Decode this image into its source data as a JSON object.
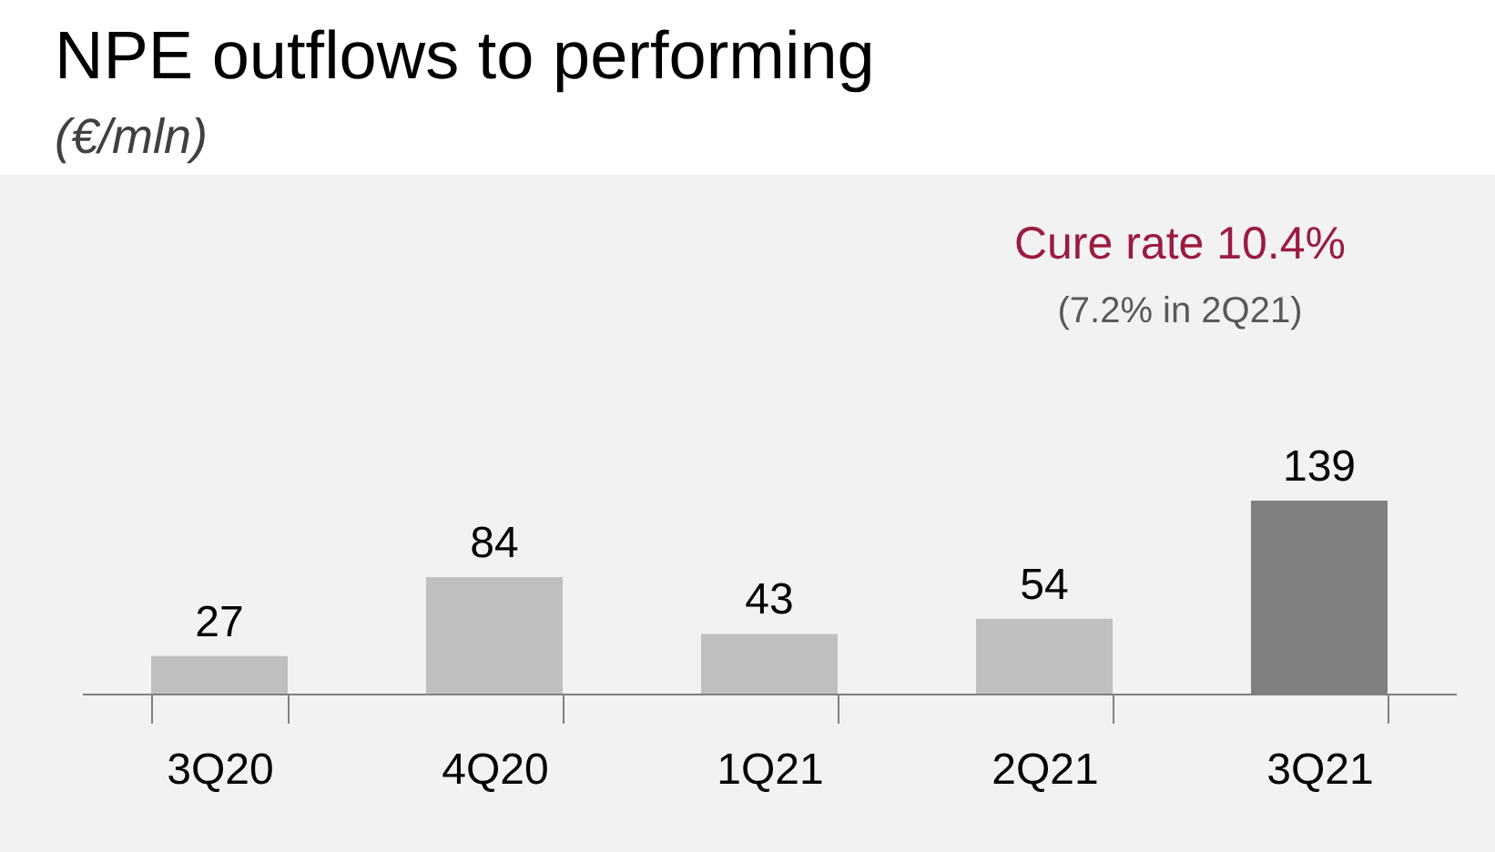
{
  "chart_data": {
    "type": "bar",
    "title": "NPE outflows to performing",
    "subtitle": "(€/mln)",
    "categories": [
      "3Q20",
      "4Q20",
      "1Q21",
      "2Q21",
      "3Q21"
    ],
    "values": [
      27,
      84,
      43,
      54,
      139
    ],
    "colors": [
      "#bfbfbf",
      "#bfbfbf",
      "#bfbfbf",
      "#bfbfbf",
      "#808080"
    ],
    "data_labels": true,
    "annotations": [
      "Cure rate 10.4%",
      "(7.2% in 2Q21)"
    ]
  }
}
